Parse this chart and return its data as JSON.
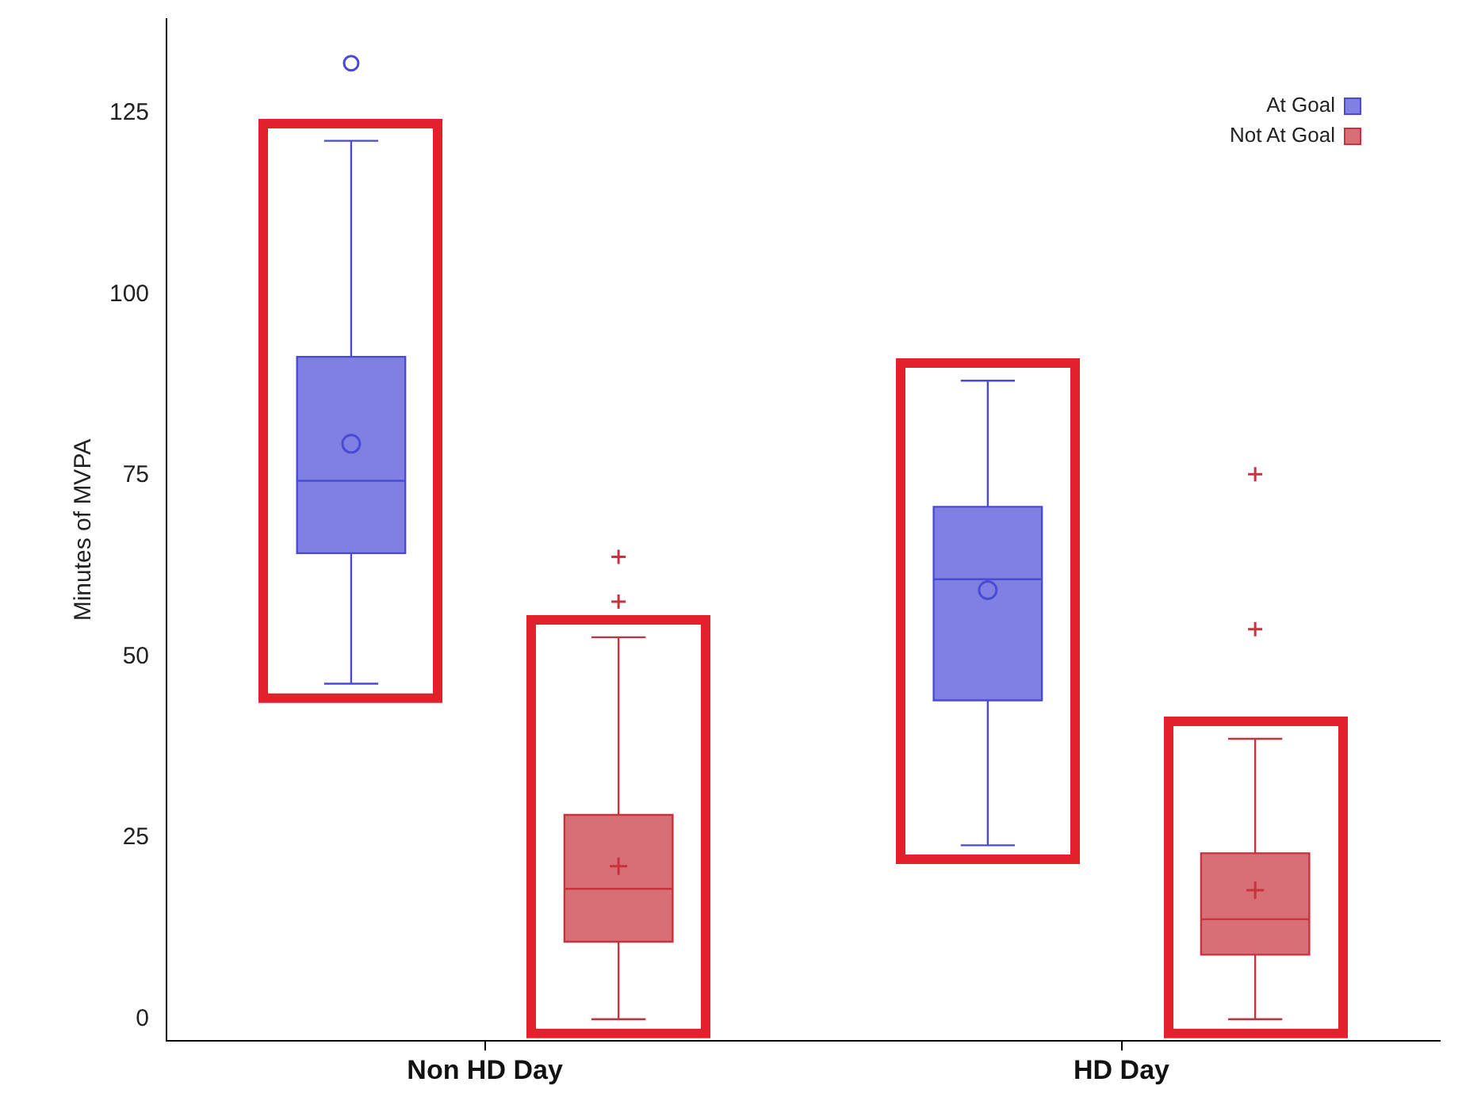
{
  "chart_data": {
    "type": "box",
    "ylabel": "Minutes of MVPA",
    "categories": [
      "Non HD Day",
      "HD Day"
    ],
    "ylim": [
      -3,
      138
    ],
    "yticks": [
      0,
      25,
      50,
      75,
      100,
      125
    ],
    "grid": false,
    "legend": "top right",
    "series": [
      {
        "name": "At Goal",
        "color": "#4a4ad6",
        "marker": "circle",
        "boxes": [
          {
            "low": 46.3,
            "q1": 64.3,
            "median": 74.3,
            "q3": 91.4,
            "high": 121.2,
            "mean": 79.4,
            "outliers": [
              131.9
            ]
          },
          {
            "low": 24,
            "q1": 44,
            "median": 60.7,
            "q3": 70.7,
            "high": 88.1,
            "mean": 59.2
          }
        ]
      },
      {
        "name": "Not At Goal",
        "color": "#c8323c",
        "marker": "cross",
        "boxes": [
          {
            "low": 0,
            "q1": 10.7,
            "median": 18,
            "q3": 28.2,
            "high": 52.7,
            "mean": 21.1,
            "outliers": [
              63.8,
              57.6
            ]
          },
          {
            "low": 0,
            "q1": 8.9,
            "median": 13.8,
            "q3": 22.9,
            "high": 38.7,
            "mean": 17.8,
            "outliers": [
              75.2,
              53.8
            ]
          }
        ]
      }
    ]
  }
}
